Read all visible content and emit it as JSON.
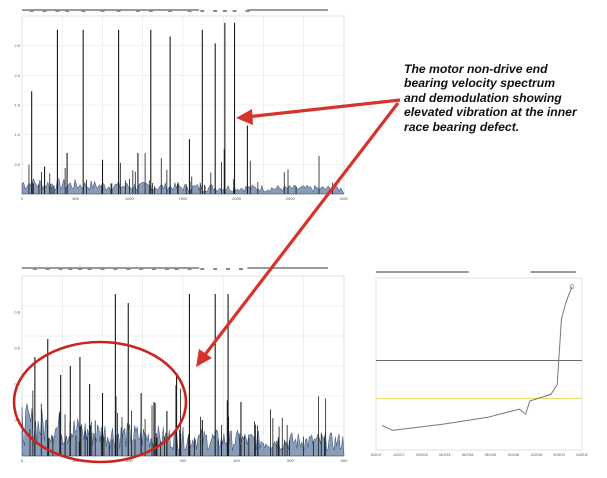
{
  "caption": {
    "lines": [
      "The motor non-drive end",
      "bearing velocity spectrum",
      "and demodulation showing",
      "elevated vibration at the inner",
      "race bearing defect."
    ]
  },
  "colors": {
    "arrow": "#d6332b",
    "ellipse": "#c8251f",
    "spectrum_line": "#1a1a1a",
    "spectrum_fill": "#2a4a7a",
    "grid": "#e2e2e2",
    "cursor_yellow": "#e3cf3a"
  },
  "panels": {
    "top_spectrum": {
      "type": "velocity-spectrum",
      "x_tick_labels": [
        "0",
        "500",
        "1000",
        "1500",
        "2000",
        "2500",
        "3000"
      ],
      "y_tick_labels": [
        "2.5",
        "2.0",
        "1.5",
        "1.0",
        "0.5"
      ]
    },
    "bottom_spectrum": {
      "type": "demodulation-spectrum",
      "x_tick_labels": [
        "0",
        "100",
        "200",
        "300",
        "400",
        "500",
        "600"
      ],
      "y_tick_labels": [
        "0.8",
        "0.6",
        "0.4",
        "0.2"
      ]
    },
    "trend": {
      "type": "overall-trend",
      "x_tick_labels": [
        "10/2017",
        "12/2017",
        "02/2018",
        "04/2018",
        "06/2018",
        "08/2018",
        "10/2018",
        "12/2018",
        "02/2019",
        "04/2019"
      ]
    }
  },
  "chart_data": [
    {
      "type": "line",
      "series": [
        {
          "x": [
            0.03,
            0.07,
            0.11,
            0.14,
            0.19,
            0.25,
            0.3,
            0.36,
            0.4,
            0.46,
            0.52,
            0.56,
            0.6,
            0.63,
            0.66,
            0.7
          ],
          "values": [
            1.5,
            0.4,
            2.4,
            0.6,
            2.4,
            0.5,
            2.4,
            0.6,
            2.4,
            2.3,
            0.8,
            2.4,
            2.2,
            2.5,
            2.5,
            1.0
          ]
        }
      ]
    },
    {
      "type": "line",
      "series": [
        {
          "x": [
            0.04,
            0.08,
            0.12,
            0.15,
            0.18,
            0.21,
            0.25,
            0.29,
            0.33,
            0.37,
            0.41,
            0.45,
            0.48,
            0.52,
            0.56,
            0.6,
            0.64,
            0.68
          ],
          "values": [
            0.55,
            0.65,
            0.45,
            0.5,
            0.55,
            0.4,
            0.35,
            0.9,
            0.85,
            0.35,
            0.3,
            0.25,
            0.45,
            0.9,
            0.2,
            0.9,
            0.9,
            0.3
          ]
        }
      ]
    },
    {
      "type": "line",
      "series": [
        {
          "x": [
            0.0,
            0.05,
            0.3,
            0.5,
            0.65,
            0.68,
            0.7,
            0.8,
            0.83,
            0.85,
            0.87,
            0.9
          ],
          "values": [
            0.15,
            0.12,
            0.16,
            0.2,
            0.25,
            0.22,
            0.3,
            0.34,
            0.4,
            0.8,
            0.9,
            1.0
          ]
        }
      ]
    }
  ]
}
